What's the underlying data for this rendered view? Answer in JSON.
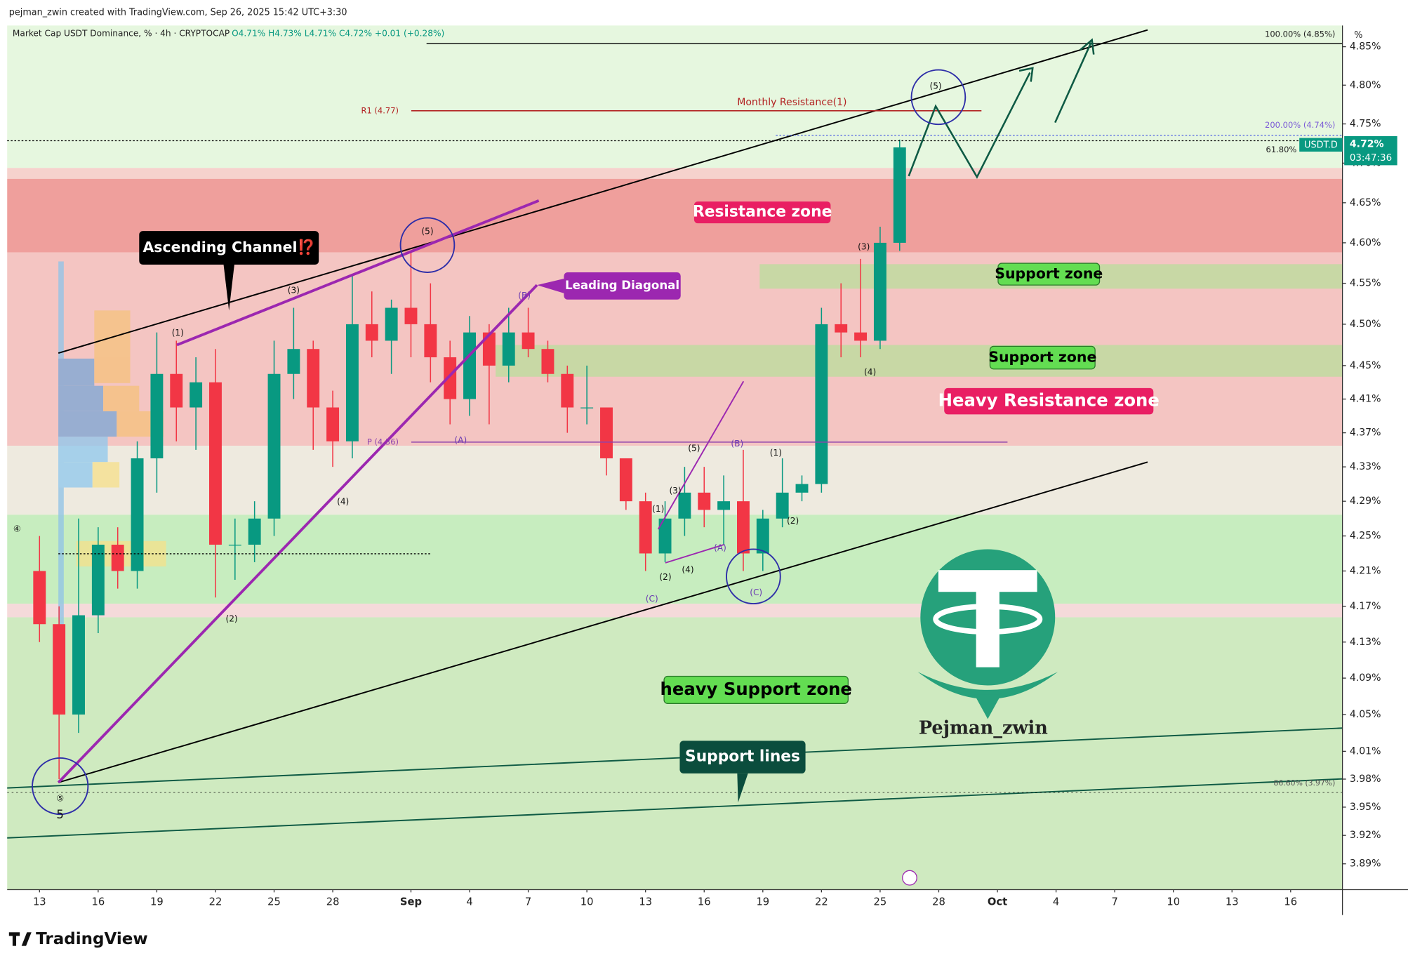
{
  "header": {
    "credit": "pejman_zwin created with TradingView.com, Sep 26, 2025 15:42 UTC+3:30",
    "symbol": "Market Cap USDT Dominance, % · 4h · CRYPTOCAP",
    "ohlc": "O4.71% H4.73% L4.71% C4.72% +0.01 (+0.28%)"
  },
  "chart_data": {
    "type": "candlestick",
    "x": [
      0,
      1,
      2,
      3,
      4,
      5,
      6,
      7,
      8,
      9,
      10,
      11,
      12,
      13,
      14,
      15,
      16,
      17,
      18,
      19,
      20,
      21,
      22,
      23,
      24,
      25,
      26,
      27,
      28,
      29,
      30,
      31,
      32,
      33,
      34,
      35,
      36,
      37,
      38,
      39,
      40,
      41,
      42,
      43,
      44
    ],
    "open": [
      4.21,
      4.15,
      4.05,
      4.16,
      4.24,
      4.21,
      4.34,
      4.44,
      4.4,
      4.43,
      4.24,
      4.24,
      4.27,
      4.44,
      4.47,
      4.4,
      4.36,
      4.5,
      4.48,
      4.52,
      4.5,
      4.46,
      4.41,
      4.49,
      4.45,
      4.49,
      4.47,
      4.44,
      4.4,
      4.4,
      4.34,
      4.29,
      4.23,
      4.27,
      4.3,
      4.28,
      4.29,
      4.23,
      4.27,
      4.3,
      4.31,
      4.5,
      4.49,
      4.48,
      4.6
    ],
    "high": [
      4.25,
      4.17,
      4.27,
      4.26,
      4.26,
      4.36,
      4.49,
      4.48,
      4.46,
      4.47,
      4.27,
      4.29,
      4.48,
      4.52,
      4.48,
      4.42,
      4.56,
      4.54,
      4.53,
      4.59,
      4.55,
      4.48,
      4.51,
      4.5,
      4.52,
      4.52,
      4.48,
      4.45,
      4.45,
      4.4,
      4.34,
      4.3,
      4.29,
      4.33,
      4.33,
      4.32,
      4.35,
      4.28,
      4.34,
      4.32,
      4.52,
      4.55,
      4.58,
      4.62,
      4.73
    ],
    "low": [
      4.13,
      3.98,
      4.03,
      4.14,
      4.19,
      4.19,
      4.3,
      4.36,
      4.35,
      4.18,
      4.2,
      4.22,
      4.25,
      4.41,
      4.35,
      4.33,
      4.34,
      4.46,
      4.44,
      4.46,
      4.43,
      4.38,
      4.39,
      4.38,
      4.43,
      4.46,
      4.43,
      4.37,
      4.38,
      4.32,
      4.28,
      4.21,
      4.22,
      4.25,
      4.26,
      4.24,
      4.21,
      4.21,
      4.26,
      4.29,
      4.3,
      4.46,
      4.46,
      4.47,
      4.59
    ],
    "close": [
      4.15,
      4.05,
      4.16,
      4.24,
      4.21,
      4.34,
      4.44,
      4.4,
      4.43,
      4.24,
      4.24,
      4.27,
      4.44,
      4.47,
      4.4,
      4.36,
      4.5,
      4.48,
      4.52,
      4.5,
      4.46,
      4.41,
      4.49,
      4.45,
      4.49,
      4.47,
      4.44,
      4.4,
      4.4,
      4.34,
      4.29,
      4.23,
      4.27,
      4.3,
      4.28,
      4.29,
      4.23,
      4.27,
      4.3,
      4.31,
      4.5,
      4.49,
      4.48,
      4.6,
      4.72
    ],
    "up_color": "#089981",
    "down_color": "#f23645",
    "log": true,
    "ylim": [
      3.863,
      4.878
    ],
    "yticks": [
      {
        "value": 3.89,
        "label": "3.89%"
      },
      {
        "value": 3.92,
        "label": "3.92%"
      },
      {
        "value": 3.95,
        "label": "3.95%"
      },
      {
        "value": 3.98,
        "label": "3.98%"
      },
      {
        "value": 4.01,
        "label": "4.01%"
      },
      {
        "value": 4.05,
        "label": "4.05%"
      },
      {
        "value": 4.09,
        "label": "4.09%"
      },
      {
        "value": 4.13,
        "label": "4.13%"
      },
      {
        "value": 4.17,
        "label": "4.17%"
      },
      {
        "value": 4.21,
        "label": "4.21%"
      },
      {
        "value": 4.25,
        "label": "4.25%"
      },
      {
        "value": 4.29,
        "label": "4.29%"
      },
      {
        "value": 4.33,
        "label": "4.33%"
      },
      {
        "value": 4.37,
        "label": "4.37%"
      },
      {
        "value": 4.41,
        "label": "4.41%"
      },
      {
        "value": 4.45,
        "label": "4.45%"
      },
      {
        "value": 4.5,
        "label": "4.50%"
      },
      {
        "value": 4.55,
        "label": "4.55%"
      },
      {
        "value": 4.6,
        "label": "4.60%"
      },
      {
        "value": 4.65,
        "label": "4.65%"
      },
      {
        "value": 4.7,
        "label": "4.70%"
      },
      {
        "value": 4.75,
        "label": "4.75%"
      },
      {
        "value": 4.8,
        "label": "4.80%"
      },
      {
        "value": 4.85,
        "label": "4.85%"
      }
    ],
    "xlim": [
      -1.654,
      66.65
    ],
    "xticks": [
      {
        "value": 0,
        "label": "13"
      },
      {
        "value": 3,
        "label": "16"
      },
      {
        "value": 6,
        "label": "19"
      },
      {
        "value": 9,
        "label": "22"
      },
      {
        "value": 12,
        "label": "25"
      },
      {
        "value": 15,
        "label": "28"
      },
      {
        "value": 19,
        "label": "Sep"
      },
      {
        "value": 22,
        "label": "4"
      },
      {
        "value": 25,
        "label": "7"
      },
      {
        "value": 28,
        "label": "10"
      },
      {
        "value": 31,
        "label": "13"
      },
      {
        "value": 34,
        "label": "16"
      },
      {
        "value": 37,
        "label": "19"
      },
      {
        "value": 40,
        "label": "22"
      },
      {
        "value": 43,
        "label": "25"
      },
      {
        "value": 46,
        "label": "28"
      },
      {
        "value": 49,
        "label": "Oct"
      },
      {
        "value": 52,
        "label": "4"
      },
      {
        "value": 55,
        "label": "7"
      },
      {
        "value": 58,
        "label": "10"
      },
      {
        "value": 61,
        "label": "13"
      },
      {
        "value": 64,
        "label": "16"
      }
    ],
    "axis_unit": "%",
    "price_label": "USDT.D",
    "last_price": "4.72%",
    "countdown": "03:47:36",
    "levels": [
      "100.00% (4.85%)",
      "200.00% (4.74%)",
      "61.80%",
      "86.60% (3.97%)",
      "R1 (4.77)",
      "P (4.36)",
      "Monthly Resistance(1)"
    ],
    "annotations": [
      "Ascending Channel⁉️",
      "Leading Diagonal",
      "Resistance zone",
      "Support zone",
      "Support zone",
      "Heavy Resistance zone",
      "heavy Support zone",
      "Support lines",
      "Pejman_zwin"
    ],
    "wave_labels": [
      "(5)",
      "(1)",
      "(3)",
      "(4)",
      "(2)",
      "(5)",
      "(3)",
      "(4)",
      "(1)",
      "(2)",
      "(A)",
      "(B)",
      "(B)",
      "(C)",
      "(C)",
      "(1)",
      "(2)",
      "(3)",
      "(4)",
      "(5)",
      "(A)",
      "④",
      "⑤",
      "5"
    ]
  },
  "footer": {
    "brand": "TradingView"
  }
}
